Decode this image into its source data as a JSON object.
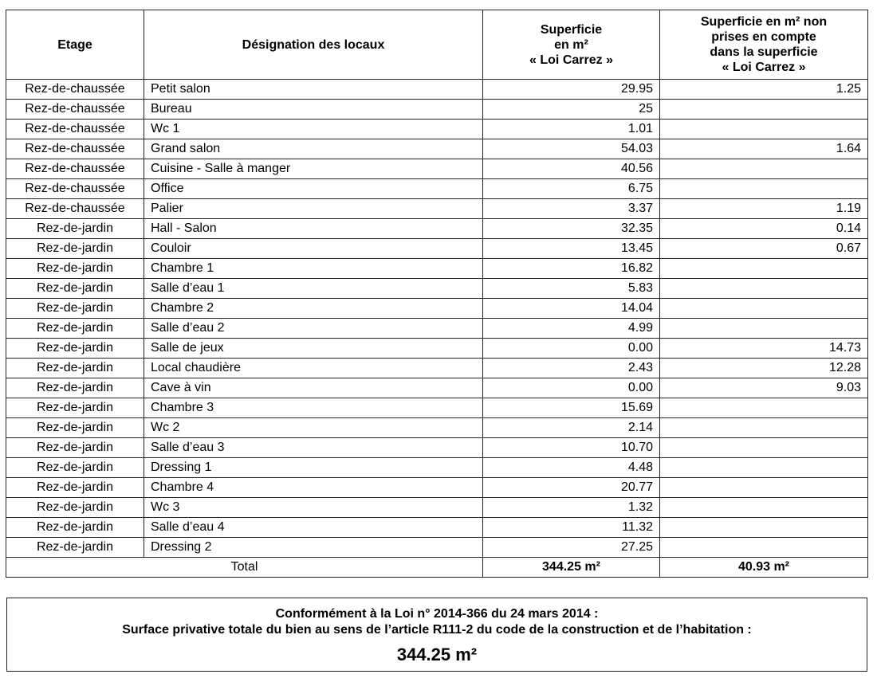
{
  "table": {
    "headers": {
      "etage": "Etage",
      "designation": "Désignation des locaux",
      "carrez": [
        "Superficie",
        "en m²",
        "« Loi Carrez »"
      ],
      "non_carrez": [
        "Superficie en m² non",
        "prises en compte",
        "dans la superficie",
        "« Loi Carrez »"
      ]
    },
    "rows": [
      {
        "etage": "Rez-de-chaussée",
        "designation": "Petit salon",
        "carrez": "29.95",
        "non_carrez": "1.25"
      },
      {
        "etage": "Rez-de-chaussée",
        "designation": "Bureau",
        "carrez": "25",
        "non_carrez": ""
      },
      {
        "etage": "Rez-de-chaussée",
        "designation": "Wc 1",
        "carrez": "1.01",
        "non_carrez": ""
      },
      {
        "etage": "Rez-de-chaussée",
        "designation": "Grand salon",
        "carrez": "54.03",
        "non_carrez": "1.64"
      },
      {
        "etage": "Rez-de-chaussée",
        "designation": "Cuisine - Salle à manger",
        "carrez": "40.56",
        "non_carrez": ""
      },
      {
        "etage": "Rez-de-chaussée",
        "designation": "Office",
        "carrez": "6.75",
        "non_carrez": ""
      },
      {
        "etage": "Rez-de-chaussée",
        "designation": "Palier",
        "carrez": "3.37",
        "non_carrez": "1.19"
      },
      {
        "etage": "Rez-de-jardin",
        "designation": "Hall - Salon",
        "carrez": "32.35",
        "non_carrez": "0.14"
      },
      {
        "etage": "Rez-de-jardin",
        "designation": "Couloir",
        "carrez": "13.45",
        "non_carrez": "0.67"
      },
      {
        "etage": "Rez-de-jardin",
        "designation": "Chambre 1",
        "carrez": "16.82",
        "non_carrez": ""
      },
      {
        "etage": "Rez-de-jardin",
        "designation": "Salle d’eau 1",
        "carrez": "5.83",
        "non_carrez": ""
      },
      {
        "etage": "Rez-de-jardin",
        "designation": "Chambre 2",
        "carrez": "14.04",
        "non_carrez": ""
      },
      {
        "etage": "Rez-de-jardin",
        "designation": "Salle d’eau 2",
        "carrez": "4.99",
        "non_carrez": ""
      },
      {
        "etage": "Rez-de-jardin",
        "designation": "Salle de jeux",
        "carrez": "0.00",
        "non_carrez": "14.73"
      },
      {
        "etage": "Rez-de-jardin",
        "designation": "Local chaudière",
        "carrez": "2.43",
        "non_carrez": "12.28"
      },
      {
        "etage": "Rez-de-jardin",
        "designation": "Cave à vin",
        "carrez": "0.00",
        "non_carrez": "9.03"
      },
      {
        "etage": "Rez-de-jardin",
        "designation": "Chambre 3",
        "carrez": "15.69",
        "non_carrez": ""
      },
      {
        "etage": "Rez-de-jardin",
        "designation": "Wc 2",
        "carrez": "2.14",
        "non_carrez": ""
      },
      {
        "etage": "Rez-de-jardin",
        "designation": "Salle d’eau 3",
        "carrez": "10.70",
        "non_carrez": ""
      },
      {
        "etage": "Rez-de-jardin",
        "designation": "Dressing 1",
        "carrez": "4.48",
        "non_carrez": ""
      },
      {
        "etage": "Rez-de-jardin",
        "designation": "Chambre 4",
        "carrez": "20.77",
        "non_carrez": ""
      },
      {
        "etage": "Rez-de-jardin",
        "designation": "Wc 3",
        "carrez": "1.32",
        "non_carrez": ""
      },
      {
        "etage": "Rez-de-jardin",
        "designation": "Salle d’eau 4",
        "carrez": "11.32",
        "non_carrez": ""
      },
      {
        "etage": "Rez-de-jardin",
        "designation": "Dressing 2",
        "carrez": "27.25",
        "non_carrez": ""
      }
    ],
    "total": {
      "label": "Total",
      "carrez": "344.25 m²",
      "non_carrez": "40.93 m²"
    }
  },
  "summary": {
    "line1": "Conformément à la Loi n° 2014-366 du 24 mars 2014 :",
    "line2": "Surface privative totale du bien au sens de l’article R111-2 du code de la construction et de l’habitation :",
    "value": "344.25 m²"
  }
}
